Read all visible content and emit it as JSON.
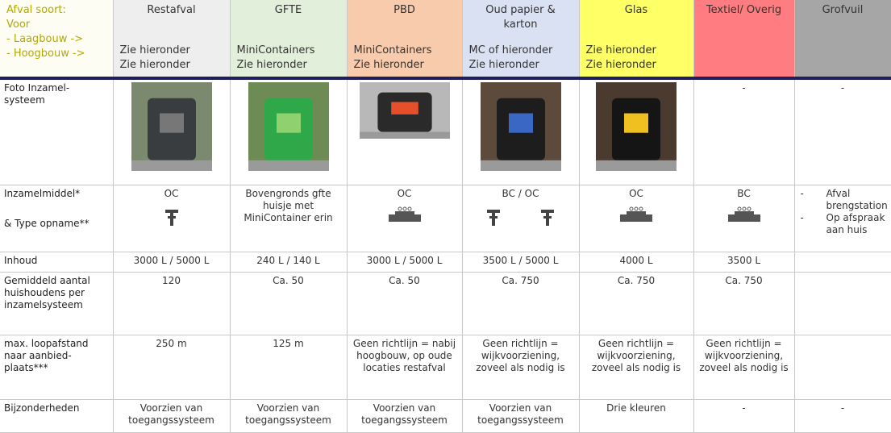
{
  "header": {
    "label_lines": [
      "Afval soort:",
      "Voor",
      "- Laagbouw ->",
      "- Hoogbouw ->"
    ],
    "columns": [
      {
        "name": "Restafval",
        "lines": [
          "Zie hieronder",
          "Zie hieronder"
        ]
      },
      {
        "name": "GFTE",
        "lines": [
          "MiniContainers",
          "Zie hieronder"
        ]
      },
      {
        "name": "PBD",
        "lines": [
          "MiniContainers",
          "Zie hieronder"
        ]
      },
      {
        "name": "Oud papier & karton",
        "lines": [
          "MC of hieronder",
          "Zie hieronder"
        ]
      },
      {
        "name": "Glas",
        "lines": [
          "Zie hieronder",
          "Zie hieronder"
        ]
      },
      {
        "name": "Textiel/ Overig",
        "lines": []
      },
      {
        "name": "Grofvuil",
        "lines": []
      }
    ]
  },
  "rows": [
    {
      "label": "Foto Inzamel-systeem",
      "cells": [
        null,
        null,
        null,
        null,
        null,
        "-",
        "-"
      ]
    },
    {
      "label_lines": [
        "Inzamelmiddel*",
        "& Type opname**"
      ],
      "cells": [
        "OC",
        "Bovengronds gfte huisje met MiniContainer erin",
        "OC",
        "BC  /  OC",
        "OC",
        "BC",
        null
      ],
      "list": [
        "Afval brengstation",
        "Op afspraak aan huis"
      ]
    },
    {
      "label": "Inhoud",
      "cells": [
        "3000 L / 5000 L",
        "240 L / 140 L",
        "3000 L / 5000 L",
        "3500 L  /  5000 L",
        "4000 L",
        "3500 L",
        null
      ]
    },
    {
      "label": "Gemiddeld aantal huishoudens per inzamelsysteem",
      "cells": [
        "120",
        "Ca. 50",
        "Ca. 50",
        "Ca. 750",
        "Ca. 750",
        "Ca. 750",
        null
      ]
    },
    {
      "label": "max. loopafstand naar aanbied-plaats***",
      "cells": [
        "250 m",
        "125 m",
        "Geen richtlijn = nabij hoogbouw, op oude locaties restafval",
        "Geen richtlijn = wijkvoorziening, zoveel als nodig is",
        "Geen richtlijn = wijkvoorziening, zoveel als nodig is",
        "Geen richtlijn = wijkvoorziening, zoveel als nodig is",
        null
      ]
    },
    {
      "label": "Bijzonderheden",
      "cells": [
        "Voorzien van toegangssysteem",
        "Voorzien van toegangssysteem",
        "Voorzien van toegangssysteem",
        "Voorzien van toegangssysteem",
        "Drie kleuren",
        "-",
        "-"
      ]
    }
  ]
}
